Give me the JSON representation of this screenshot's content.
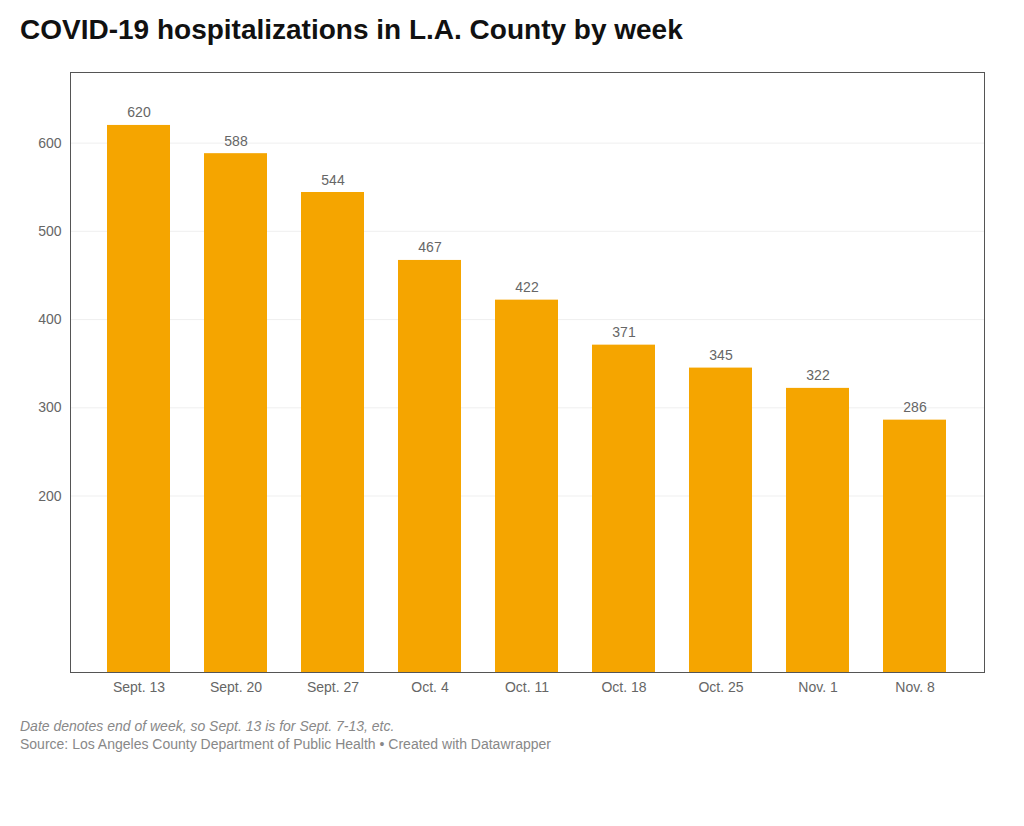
{
  "chart_data": {
    "type": "bar",
    "title": "COVID-19 hospitalizations in L.A. County by week",
    "categories": [
      "Sept. 13",
      "Sept. 20",
      "Sept. 27",
      "Oct. 4",
      "Oct. 11",
      "Oct. 18",
      "Oct. 25",
      "Nov. 1",
      "Nov. 8"
    ],
    "values": [
      620,
      588,
      544,
      467,
      422,
      371,
      345,
      322,
      286
    ],
    "color": "#F5A500",
    "ylim": [
      0,
      680
    ],
    "yticks": [
      200,
      300,
      400,
      500,
      600
    ],
    "grid": true,
    "data_labels": true,
    "notes": [
      "Date denotes end of week, so Sept. 13 is for Sept. 7-13, etc.",
      "Source: Los Angeles County Department of Public Health • Created with Datawrapper"
    ]
  }
}
